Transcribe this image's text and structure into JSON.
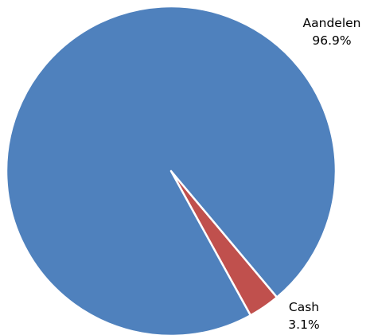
{
  "chart_data": {
    "type": "pie",
    "slices": [
      {
        "label": "Aandelen",
        "value": 96.9,
        "display": "96.9%",
        "color": "#4f81bd"
      },
      {
        "label": "Cash",
        "value": 3.1,
        "display": "3.1%",
        "color": "#c0504d"
      }
    ],
    "legend": "none",
    "labels_position": "outside"
  }
}
